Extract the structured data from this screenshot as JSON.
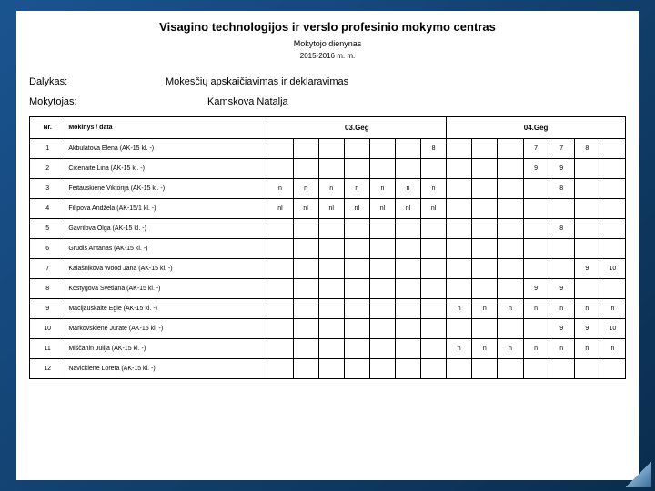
{
  "header": {
    "title": "Visagino technologijos ir verslo profesinio mokymo centras",
    "subtitle": "Mokytojo dienynas",
    "year": "2015-2016 m. m."
  },
  "meta": {
    "subject_label": "Dalykas:",
    "subject_value": "Mokesčių apskaičiavimas ir deklaravimas",
    "teacher_label": "Mokytojas:",
    "teacher_value": "Kamskova Natalja"
  },
  "table": {
    "col_nr": "Nr.",
    "col_name": "Mokinys / data",
    "dates": [
      "03.Geg",
      "04.Geg"
    ],
    "days_per_date": 7,
    "rows": [
      {
        "nr": "1",
        "name": "Akbulatova Elena (AK-15 kl. -)",
        "cells": [
          "",
          "",
          "",
          "",
          "",
          "",
          "8",
          "",
          "",
          "",
          "7",
          "7",
          "8",
          ""
        ]
      },
      {
        "nr": "2",
        "name": "Cicenaite Lina (AK-15 kl. -)",
        "cells": [
          "",
          "",
          "",
          "",
          "",
          "",
          "",
          "",
          "",
          "",
          "9",
          "9",
          "",
          ""
        ]
      },
      {
        "nr": "3",
        "name": "Feitauskiene Viktorija (AK-15 kl. -)",
        "cells": [
          "n",
          "n",
          "n",
          "n",
          "n",
          "n",
          "n",
          "",
          "",
          "",
          "",
          "8",
          "",
          ""
        ]
      },
      {
        "nr": "4",
        "name": "Filipova Andžela (AK-15/1 kl. -)",
        "cells": [
          "nl",
          "nl",
          "nl",
          "nl",
          "nl",
          "nl",
          "nl",
          "",
          "",
          "",
          "",
          "",
          "",
          ""
        ]
      },
      {
        "nr": "5",
        "name": "Gavrilova Olga (AK-15 kl. -)",
        "cells": [
          "",
          "",
          "",
          "",
          "",
          "",
          "",
          "",
          "",
          "",
          "",
          "8",
          "",
          ""
        ]
      },
      {
        "nr": "6",
        "name": "Grudis Antanas (AK-15 kl. -)",
        "cells": [
          "",
          "",
          "",
          "",
          "",
          "",
          "",
          "",
          "",
          "",
          "",
          "",
          "",
          ""
        ]
      },
      {
        "nr": "7",
        "name": "Kalašnikova Wood Jana (AK-15 kl. -)",
        "cells": [
          "",
          "",
          "",
          "",
          "",
          "",
          "",
          "",
          "",
          "",
          "",
          "",
          "9",
          "10"
        ]
      },
      {
        "nr": "8",
        "name": "Kostygova Svetlana (AK-15 kl. -)",
        "cells": [
          "",
          "",
          "",
          "",
          "",
          "",
          "",
          "",
          "",
          "",
          "9",
          "9",
          "",
          ""
        ]
      },
      {
        "nr": "9",
        "name": "Macijauskaite Egle (AK-15 kl. -)",
        "cells": [
          "",
          "",
          "",
          "",
          "",
          "",
          "",
          "n",
          "n",
          "n",
          "n",
          "n",
          "n",
          "n"
        ]
      },
      {
        "nr": "10",
        "name": "Markovskiene Jūrate (AK-15 kl. -)",
        "cells": [
          "",
          "",
          "",
          "",
          "",
          "",
          "",
          "",
          "",
          "",
          "",
          "9",
          "9",
          "10"
        ]
      },
      {
        "nr": "11",
        "name": "Miščanin Julija (AK-15 kl. -)",
        "cells": [
          "",
          "",
          "",
          "",
          "",
          "",
          "",
          "n",
          "n",
          "n",
          "n",
          "n",
          "n",
          "n"
        ]
      },
      {
        "nr": "12",
        "name": "Navickiene Loreta (AK-15 kl. -)",
        "cells": [
          "",
          "",
          "",
          "",
          "",
          "",
          "",
          "",
          "",
          "",
          "",
          "",
          "",
          ""
        ]
      }
    ]
  },
  "colors": {
    "bg_start": "#1a5490",
    "bg_end": "#0a2d4d",
    "page": "#ffffff",
    "border": "#000000"
  }
}
